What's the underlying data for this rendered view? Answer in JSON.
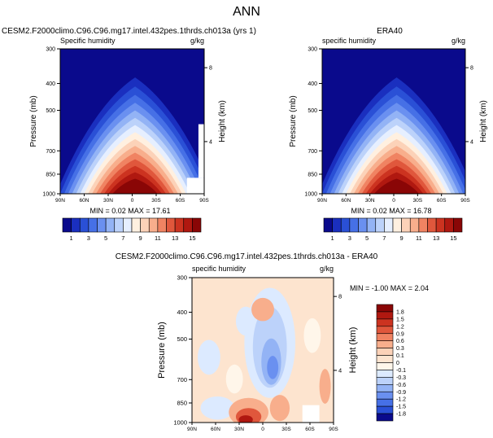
{
  "page_title": "ANN",
  "chart_data": [
    {
      "type": "heatmap",
      "title": "CESM2.F2000climo.C96.C96.mg17.intel.432pes.1thrds.ch013a (yrs 1)",
      "variable": "Specific humidity",
      "units": "g/kg",
      "ylabel": "Pressure (mb)",
      "ylabel_right": "Height (km)",
      "x_ticks": [
        "90N",
        "60N",
        "30N",
        "0",
        "30S",
        "60S",
        "90S"
      ],
      "y_ticks": [
        300,
        400,
        500,
        700,
        850,
        1000
      ],
      "y_ticks_right": [
        8,
        4
      ],
      "ylim": [
        1000,
        300
      ],
      "xlim": [
        90,
        -90
      ],
      "min": "0.02",
      "max": "17.61",
      "stats_text": "MIN =  0.02  MAX =  17.61"
    },
    {
      "type": "heatmap",
      "title": "ERA40",
      "variable": "specific humidity",
      "units": "g/kg",
      "ylabel": "Pressure (mb)",
      "ylabel_right": "Height (km)",
      "x_ticks": [
        "90N",
        "60N",
        "30N",
        "0",
        "30S",
        "60S",
        "90S"
      ],
      "y_ticks": [
        300,
        400,
        500,
        700,
        850,
        1000
      ],
      "y_ticks_right": [
        8,
        4
      ],
      "ylim": [
        1000,
        300
      ],
      "xlim": [
        90,
        -90
      ],
      "min": "0.02",
      "max": "16.78",
      "stats_text": "MIN =  0.02  MAX =  16.78"
    },
    {
      "type": "heatmap",
      "title": "CESM2.F2000climo.C96.C96.mg17.intel.432pes.1thrds.ch013a - ERA40",
      "variable": "specific humidity",
      "units": "g/kg",
      "ylabel": "Pressure (mb)",
      "ylabel_right": "Height (km)",
      "x_ticks": [
        "90N",
        "60N",
        "30N",
        "0",
        "30S",
        "60S",
        "90S"
      ],
      "y_ticks": [
        300,
        400,
        500,
        700,
        850,
        1000
      ],
      "y_ticks_right": [
        8,
        4
      ],
      "ylim": [
        1000,
        300
      ],
      "xlim": [
        90,
        -90
      ],
      "min": "-1.00",
      "max": "2.04",
      "stats_text": "MIN = -1.00  MAX =  2.04"
    }
  ],
  "colorbar_top": {
    "labels": [
      "1",
      "3",
      "5",
      "7",
      "9",
      "11",
      "13",
      "15"
    ],
    "colors": [
      "#0a0a8c",
      "#1a2fbf",
      "#2a50d6",
      "#4670e6",
      "#6a90f0",
      "#93b3f5",
      "#bcd2fa",
      "#e6efff",
      "#fff0e0",
      "#fcd2b8",
      "#f8ae8c",
      "#f08362",
      "#e0573c",
      "#cc3320",
      "#b01810",
      "#8a0606"
    ]
  },
  "colorbar_diff": {
    "labels": [
      "1.8",
      "1.5",
      "1.2",
      "0.9",
      "0.6",
      "0.3",
      "0.1",
      "0",
      "-0.1",
      "-0.3",
      "-0.6",
      "-0.9",
      "-1.2",
      "-1.5",
      "-1.8"
    ],
    "colors": [
      "#8a0606",
      "#b01810",
      "#cc3320",
      "#e0573c",
      "#f08362",
      "#f8ae8c",
      "#fcd2b8",
      "#fde4cf",
      "#fff6ea",
      "#dceaff",
      "#bcd2fa",
      "#93b3f5",
      "#6a90f0",
      "#4670e6",
      "#2a50d6",
      "#0a0a8c"
    ]
  }
}
